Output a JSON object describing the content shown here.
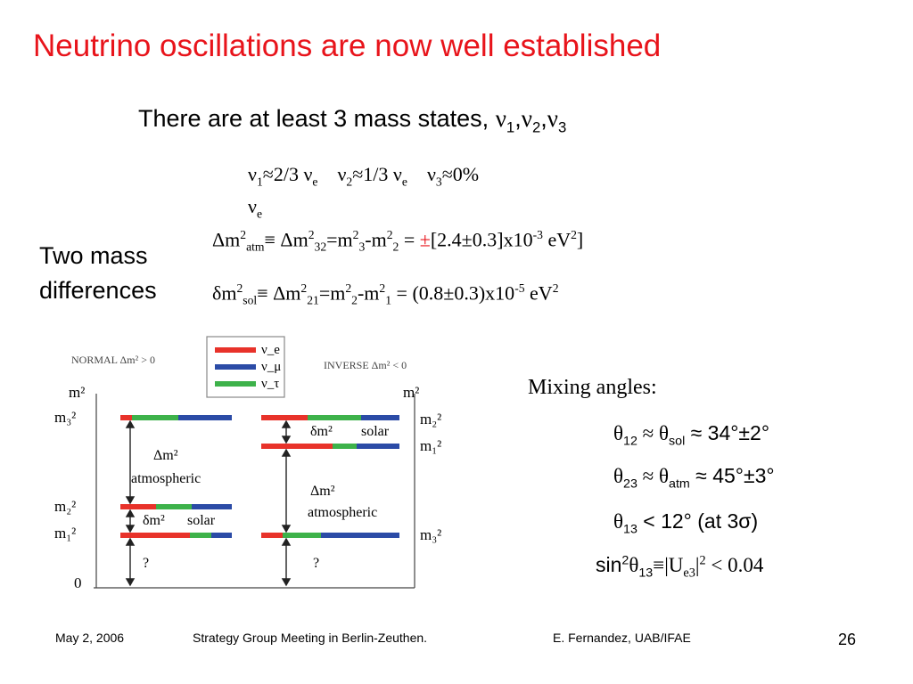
{
  "title": "Neutrino oscillations are now well established",
  "subtitle": {
    "text": "There are at least 3 mass states, ",
    "states": [
      "ν",
      "1",
      ",",
      "ν",
      "2",
      ",",
      "ν",
      "3"
    ]
  },
  "flavor_fractions": {
    "nu1": "≈2/3",
    "nu2": "≈1/3",
    "nu3": "≈0%",
    "nu_sym": "ν",
    "e_sub": "e"
  },
  "two_mass_label": [
    "Two mass",
    "differences"
  ],
  "eq_atm": {
    "lhs": "Δm",
    "atm_sub": "atm",
    "equiv": "≡ Δm",
    "sub32": "32",
    "eq": "=m",
    "sub3": "3",
    "minus": "-m",
    "sub2": "2",
    "eq2": " = ",
    "pm": "±",
    "value": "[2.4±0.3]x10",
    "exp": "-3",
    "unit": " eV",
    "sq": "2",
    "close": "]"
  },
  "eq_sol": {
    "lhs": "δm",
    "sol_sub": "sol",
    "equiv": "≡ Δm",
    "sub21": "21",
    "eq": "=m",
    "sub2": "2",
    "minus": "-m",
    "sub1": "1",
    "value": " = (0.8±0.3)x10",
    "exp": "-5",
    "unit": " eV",
    "sq": "2"
  },
  "diagram": {
    "normal_label": "NORMAL  Δm² > 0",
    "inverse_label": "INVERSE  Δm² < 0",
    "legend": [
      "ν_e",
      "ν_μ",
      "ν_τ"
    ],
    "left_axis": [
      "m²",
      "m₃²",
      "m₂²",
      "m₁²",
      "0"
    ],
    "right_axis": [
      "m²",
      "m₂²",
      "m₁²",
      "m₃²"
    ],
    "delta_m2": "Δm²",
    "delta_small": "δm²",
    "atmospheric": "atmospheric",
    "solar": "solar",
    "question": "?",
    "colors": {
      "nu_e": "#e8322a",
      "nu_mu": "#2b4ba6",
      "nu_tau": "#3db24a"
    }
  },
  "mixing": {
    "title": "Mixing angles:",
    "rows": [
      {
        "theta": "θ",
        "sub": "12",
        "approx": " ≈ θ",
        "sub2": "sol",
        "rest": " ≈ 34°±2°"
      },
      {
        "theta": "θ",
        "sub": "23",
        "approx": " ≈ θ",
        "sub2": "atm",
        "rest": " ≈ 45°±3°"
      },
      {
        "theta": "θ",
        "sub": "13",
        "rest": " < 12° (at 3σ)"
      }
    ],
    "sin_row": {
      "sin": "sin",
      "sq": "2",
      "theta": "θ",
      "sub": "13",
      "mid": "≡|U",
      "sub_e3": "e3",
      "bar": "|",
      "sq2": "2",
      "rest": " < 0.04"
    }
  },
  "footer": {
    "date": "May 2, 2006",
    "meeting": "Strategy Group Meeting in Berlin-Zeuthen.",
    "author": "E. Fernandez, UAB/IFAE",
    "page": "26"
  }
}
